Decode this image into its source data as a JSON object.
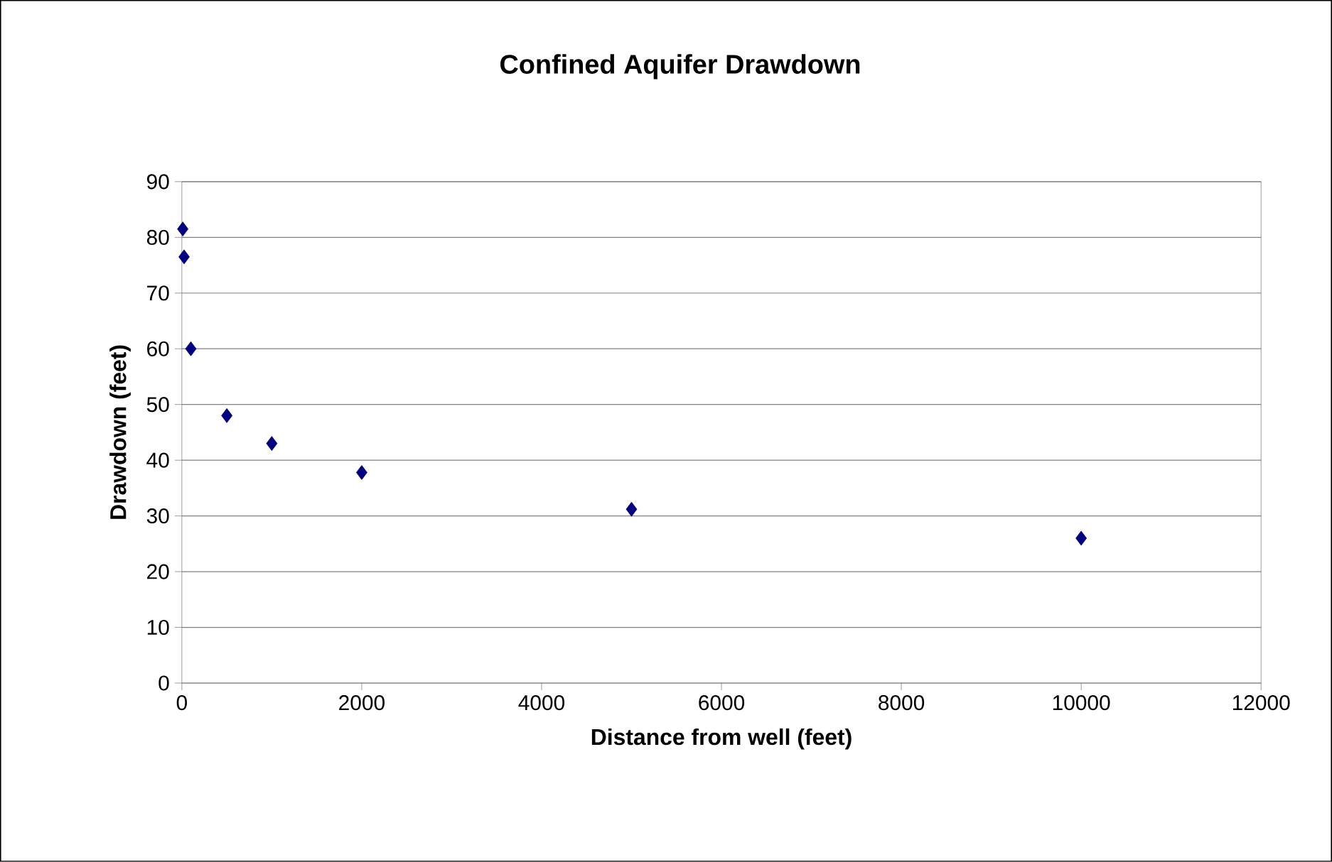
{
  "chart_data": {
    "type": "scatter",
    "title": "Confined Aquifer Drawdown",
    "xlabel": "Distance from well (feet)",
    "ylabel": "Drawdown (feet)",
    "x": [
      10,
      25,
      100,
      500,
      1000,
      2000,
      5000,
      10000
    ],
    "series": [
      {
        "color": "#000080",
        "values": [
          81.5,
          76.5,
          60,
          48,
          43,
          37.8,
          31.2,
          26
        ]
      }
    ],
    "xlim": [
      0,
      12000
    ],
    "xticks": [
      0,
      2000,
      4000,
      6000,
      8000,
      10000,
      12000
    ],
    "ylim": [
      0,
      90
    ],
    "yticks": [
      0,
      10,
      20,
      30,
      40,
      50,
      60,
      70,
      80,
      90
    ],
    "grid": "y",
    "marker": "diamond"
  }
}
